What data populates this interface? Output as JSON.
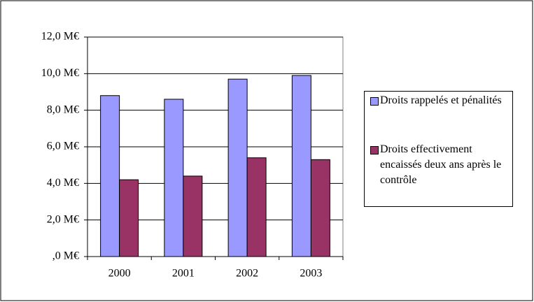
{
  "chart_data": {
    "type": "bar",
    "categories": [
      "2000",
      "2001",
      "2002",
      "2003"
    ],
    "series": [
      {
        "name": "Droits rappelés et pénalités",
        "color": "#9999ff",
        "values": [
          8.8,
          8.6,
          9.7,
          9.9
        ]
      },
      {
        "name": "Droits effectivement encaissés deux ans après le contrôle",
        "color": "#993366",
        "values": [
          4.2,
          4.4,
          5.4,
          5.3
        ]
      }
    ],
    "ylim": [
      0,
      12
    ],
    "yticks": [
      {
        "value": 0,
        "label": ",0 M€"
      },
      {
        "value": 2,
        "label": "2,0 M€"
      },
      {
        "value": 4,
        "label": "4,0 M€"
      },
      {
        "value": 6,
        "label": "6,0 M€"
      },
      {
        "value": 8,
        "label": "8,0 M€"
      },
      {
        "value": 10,
        "label": "10,0 M€"
      },
      {
        "value": 12,
        "label": "12,0 M€"
      }
    ],
    "grid": true,
    "legend": "right"
  }
}
